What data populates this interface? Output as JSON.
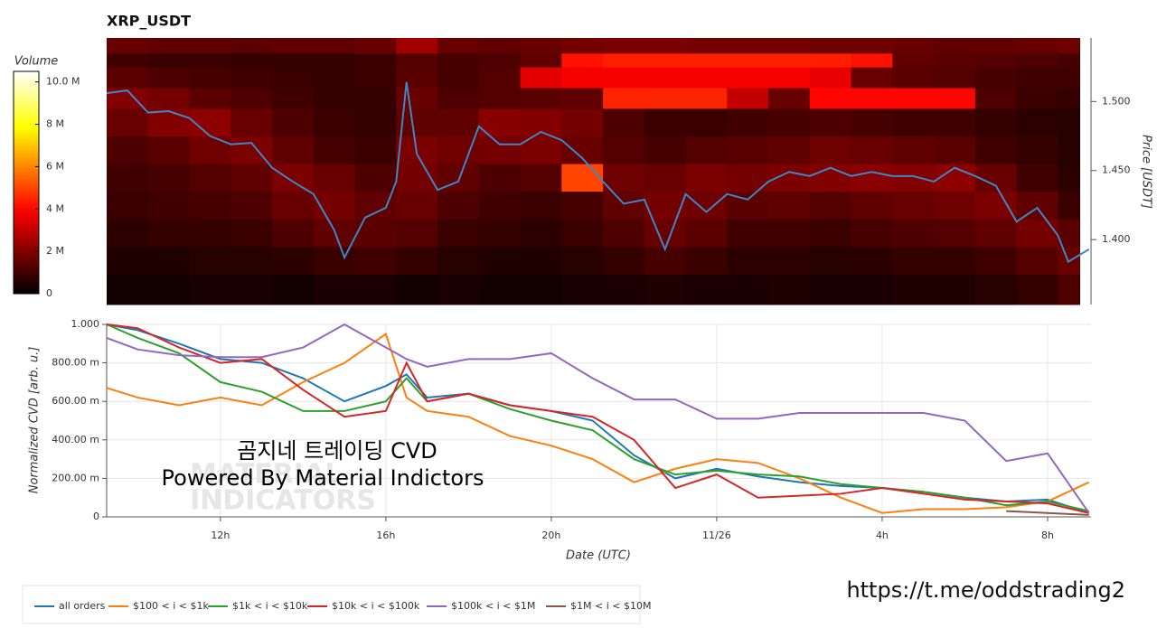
{
  "chart_data": [
    {
      "type": "heatmap",
      "title": "XRP_USDT",
      "y2label": "Price [USDT]",
      "colormap": "hot",
      "y2lim": [
        1.353,
        1.546
      ],
      "y2ticks": [
        {
          "value": 1.4,
          "label": "1.400"
        },
        {
          "value": 1.45,
          "label": "1.450"
        },
        {
          "value": 1.5,
          "label": "1.500"
        }
      ],
      "colorbar_label": "Volume",
      "colorbar_lim": [
        0,
        10.5
      ],
      "colorbar_ticks": [
        {
          "value": 0,
          "label": "0"
        },
        {
          "value": 2,
          "label": "2 M"
        },
        {
          "value": 4,
          "label": "4 M"
        },
        {
          "value": 6,
          "label": "6 M"
        },
        {
          "value": 8,
          "label": "8 M"
        },
        {
          "value": 10,
          "label": "10.0 M"
        }
      ],
      "heatmap": {
        "x_bins": [
          9.25,
          10.25,
          11.25,
          12.25,
          13.25,
          14.25,
          15.25,
          16.25,
          17.25,
          18.25,
          19.25,
          20.25,
          21.25,
          22.25,
          23.25,
          24.25,
          25.25,
          26.25,
          27.25,
          28.25,
          29.25,
          30.25,
          31.25,
          32.25,
          32.77
        ],
        "y_bins": [
          1.353,
          1.375,
          1.395,
          1.415,
          1.435,
          1.455,
          1.475,
          1.495,
          1.51,
          1.525,
          1.535,
          1.546
        ],
        "values": [
          [
            0.3,
            0.3,
            0.4,
            0.4,
            0.3,
            0.4,
            0.4,
            0.3,
            0.4,
            0.3,
            0.3,
            0.4,
            0.4,
            0.5,
            0.4,
            0.4,
            0.5,
            0.4,
            0.4,
            0.5,
            0.5,
            0.6,
            0.8,
            1.2
          ],
          [
            0.5,
            0.5,
            0.6,
            0.6,
            0.7,
            0.9,
            1.0,
            0.8,
            0.6,
            0.5,
            0.5,
            0.6,
            0.8,
            1.1,
            0.9,
            0.7,
            0.7,
            0.6,
            0.7,
            0.8,
            0.8,
            1.0,
            1.3,
            1.6
          ],
          [
            0.7,
            0.8,
            0.8,
            0.9,
            1.2,
            1.5,
            1.4,
            1.3,
            0.9,
            0.8,
            0.7,
            0.9,
            1.2,
            1.6,
            1.4,
            1.0,
            1.0,
            0.9,
            1.1,
            1.2,
            1.3,
            1.5,
            1.8,
            1.4
          ],
          [
            0.9,
            1.0,
            1.1,
            1.2,
            1.6,
            1.8,
            1.5,
            1.6,
            1.2,
            1.0,
            0.9,
            1.1,
            1.5,
            1.8,
            1.7,
            1.4,
            1.5,
            1.3,
            1.5,
            1.6,
            1.7,
            1.9,
            1.5,
            0.9
          ],
          [
            1.0,
            1.1,
            1.3,
            1.5,
            1.9,
            1.6,
            1.2,
            1.8,
            1.5,
            1.2,
            1.3,
            5.0,
            1.7,
            1.6,
            1.9,
            1.8,
            1.9,
            2.0,
            2.1,
            2.0,
            2.2,
            1.6,
            1.0,
            0.7
          ],
          [
            1.2,
            1.4,
            1.7,
            1.9,
            1.5,
            1.1,
            0.9,
            1.9,
            1.7,
            1.8,
            1.9,
            1.6,
            1.3,
            1.1,
            1.3,
            1.4,
            1.5,
            1.7,
            1.6,
            1.5,
            1.4,
            1.0,
            0.8,
            0.6
          ],
          [
            1.6,
            2.0,
            2.2,
            1.6,
            1.2,
            0.9,
            0.8,
            1.5,
            1.5,
            2.1,
            2.0,
            1.8,
            1.2,
            0.9,
            0.9,
            1.0,
            1.1,
            1.2,
            1.1,
            1.0,
            1.0,
            0.8,
            0.7,
            0.6
          ],
          [
            2.0,
            1.8,
            1.4,
            1.2,
            1.0,
            0.8,
            0.8,
            1.6,
            1.2,
            1.3,
            1.4,
            1.5,
            4.5,
            4.5,
            4.5,
            3.0,
            1.6,
            4.0,
            4.0,
            4.0,
            4.0,
            1.2,
            0.9,
            0.8
          ],
          [
            1.4,
            1.2,
            1.1,
            1.0,
            0.9,
            0.8,
            0.9,
            1.4,
            1.1,
            1.3,
            3.5,
            3.8,
            3.8,
            3.8,
            3.8,
            3.8,
            3.8,
            3.6,
            1.6,
            1.4,
            1.3,
            1.1,
            1.0,
            1.0
          ],
          [
            1.0,
            0.9,
            0.9,
            0.8,
            0.8,
            0.8,
            0.9,
            1.3,
            1.1,
            1.2,
            1.5,
            4.2,
            4.4,
            4.4,
            4.4,
            4.4,
            4.4,
            4.4,
            4.2,
            1.5,
            1.4,
            1.3,
            1.2,
            1.1
          ],
          [
            1.6,
            1.5,
            1.5,
            1.4,
            1.5,
            1.5,
            1.6,
            2.5,
            1.6,
            1.5,
            1.6,
            1.8,
            1.9,
            1.9,
            1.8,
            1.8,
            1.8,
            1.7,
            1.7,
            1.6,
            1.5,
            1.5,
            1.6,
            1.7
          ]
        ]
      },
      "price": {
        "color": "#3f86c6",
        "x": [
          9.25,
          9.75,
          10.25,
          10.75,
          11.25,
          11.75,
          12.25,
          12.75,
          13.25,
          13.75,
          14.25,
          14.75,
          15,
          15.5,
          16,
          16.25,
          16.5,
          16.75,
          17.25,
          17.75,
          18.25,
          18.75,
          19.25,
          19.75,
          20.25,
          20.75,
          21.25,
          21.75,
          22.25,
          22.75,
          23.25,
          23.75,
          24.25,
          24.75,
          25.25,
          25.75,
          26.25,
          26.75,
          27.25,
          27.75,
          28.25,
          28.75,
          29.25,
          29.75,
          30.25,
          30.75,
          31.25,
          31.75,
          32.25,
          32.5,
          33
        ],
        "values": [
          1.506,
          1.508,
          1.492,
          1.493,
          1.488,
          1.475,
          1.469,
          1.47,
          1.452,
          1.442,
          1.433,
          1.407,
          1.387,
          1.416,
          1.423,
          1.442,
          1.514,
          1.462,
          1.436,
          1.442,
          1.482,
          1.469,
          1.469,
          1.478,
          1.472,
          1.459,
          1.442,
          1.426,
          1.429,
          1.393,
          1.433,
          1.42,
          1.433,
          1.429,
          1.442,
          1.449,
          1.446,
          1.452,
          1.446,
          1.449,
          1.446,
          1.446,
          1.442,
          1.452,
          1.446,
          1.439,
          1.413,
          1.423,
          1.403,
          1.384,
          1.393
        ]
      }
    },
    {
      "type": "line",
      "xlabel": "Date (UTC)",
      "ylabel": "Normalized CVD [arb. u.]",
      "grid": true,
      "xlim": [
        9.25,
        33.05
      ],
      "xticks": [
        {
          "value": 12,
          "label": "12h"
        },
        {
          "value": 16,
          "label": "16h"
        },
        {
          "value": 20,
          "label": "20h"
        },
        {
          "value": 24,
          "label": "11/26"
        },
        {
          "value": 28,
          "label": "4h"
        },
        {
          "value": 32,
          "label": "8h"
        }
      ],
      "ylim": [
        0,
        1.0
      ],
      "yticks": [
        0,
        {
          "value": 0.2,
          "label": "200.00 m"
        },
        {
          "value": 0.4,
          "label": "400.00 m"
        },
        {
          "value": 0.6,
          "label": "600.00 m"
        },
        {
          "value": 0.8,
          "label": "800.00 m"
        },
        {
          "value": 1.0,
          "label": "1.000"
        }
      ],
      "x": [
        9.25,
        10,
        11,
        12,
        13,
        14,
        15,
        16,
        16.5,
        17,
        18,
        19,
        20,
        21,
        22,
        23,
        24,
        25,
        26,
        27,
        28,
        29,
        30,
        31,
        32,
        33
      ],
      "series": [
        {
          "name": "all orders",
          "color": "#1f77b4",
          "values": [
            1.0,
            0.97,
            0.9,
            0.82,
            0.8,
            0.72,
            0.6,
            0.68,
            0.74,
            0.62,
            0.64,
            0.58,
            0.55,
            0.5,
            0.32,
            0.2,
            0.25,
            0.21,
            0.18,
            0.16,
            0.15,
            0.13,
            0.1,
            0.08,
            0.09,
            0.02
          ]
        },
        {
          "name": "$100 < i < $1k",
          "color": "#ff7f0e",
          "values": [
            0.67,
            0.62,
            0.58,
            0.62,
            0.58,
            0.7,
            0.8,
            0.95,
            0.62,
            0.55,
            0.52,
            0.42,
            0.37,
            0.3,
            0.18,
            0.25,
            0.3,
            0.28,
            0.2,
            0.1,
            0.02,
            0.04,
            0.04,
            0.05,
            0.08,
            0.18
          ]
        },
        {
          "name": "$1k < i < $10k",
          "color": "#2ca02c",
          "values": [
            1.0,
            0.93,
            0.85,
            0.7,
            0.65,
            0.55,
            0.55,
            0.6,
            0.72,
            0.6,
            0.64,
            0.56,
            0.5,
            0.45,
            0.3,
            0.22,
            0.24,
            0.22,
            0.21,
            0.17,
            0.15,
            0.13,
            0.1,
            0.06,
            0.08,
            0.03
          ]
        },
        {
          "name": "$10k < i < $100k",
          "color": "#d62728",
          "values": [
            1.0,
            0.98,
            0.88,
            0.8,
            0.82,
            0.66,
            0.52,
            0.55,
            0.8,
            0.6,
            0.64,
            0.58,
            0.55,
            0.52,
            0.4,
            0.15,
            0.22,
            0.1,
            0.11,
            0.12,
            0.15,
            0.12,
            0.09,
            0.08,
            0.07,
            0.02
          ]
        },
        {
          "name": "$100k < i < $1M",
          "color": "#9467bd",
          "values": [
            0.93,
            0.87,
            0.84,
            0.83,
            0.83,
            0.88,
            1.0,
            0.88,
            0.82,
            0.78,
            0.82,
            0.82,
            0.85,
            0.72,
            0.61,
            0.61,
            0.51,
            0.51,
            0.54,
            0.54,
            0.54,
            0.54,
            0.5,
            0.29,
            0.33,
            0.02
          ]
        },
        {
          "name": "$1M < i < $10M",
          "color": "#8c564b",
          "values": [
            null,
            null,
            null,
            null,
            null,
            null,
            null,
            null,
            null,
            null,
            null,
            null,
            null,
            null,
            null,
            null,
            null,
            null,
            null,
            null,
            null,
            null,
            null,
            0.03,
            0.02,
            0.01
          ]
        }
      ]
    }
  ],
  "watermark": {
    "line1": "곰지네 트레이딩 CVD",
    "line2": "Powered By Material Indictors",
    "logo1": "MATERIAL",
    "logo2": "INDICATORS"
  },
  "link": "https://t.me/oddstrading2"
}
